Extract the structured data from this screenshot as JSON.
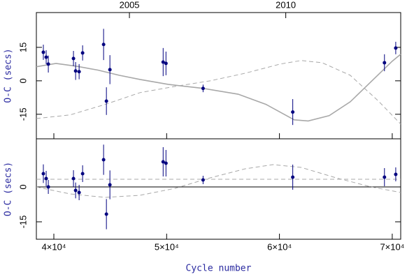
{
  "chart_data": [
    {
      "type": "scatter",
      "ylabel": "O-C (secs)",
      "xlim": [
        38450,
        70750
      ],
      "ylim": [
        -26,
        30.6
      ],
      "yticks": [
        -15,
        0,
        15
      ],
      "x2ticks": [
        {
          "value": 46700,
          "label": "2005"
        },
        {
          "value": 60560,
          "label": "2010"
        }
      ],
      "xticks": [
        40000,
        50000,
        60000,
        70000
      ],
      "points": {
        "color": "#00007f",
        "x": [
          39070,
          39320,
          39510,
          41740,
          41930,
          42240,
          42550,
          44410,
          44660,
          44970,
          49690,
          49940,
          53230,
          61180,
          69310,
          70310
        ],
        "values": [
          12.8,
          10.6,
          7.5,
          10,
          4.4,
          4.1,
          12.5,
          16.3,
          -9.1,
          5,
          8.4,
          7.8,
          -3.4,
          -14,
          8.1,
          14.7
        ],
        "errors": [
          3.4,
          3.1,
          3.8,
          3.4,
          4,
          3.4,
          3.4,
          7,
          6.2,
          6.5,
          6.3,
          5.3,
          1.7,
          5.8,
          3.8,
          2.8
        ]
      },
      "curves": [
        {
          "color": "#a8a8a8",
          "dash": false,
          "x": [
            38450,
            40190,
            42050,
            43910,
            45780,
            47640,
            50130,
            53230,
            56340,
            58820,
            61310,
            62550,
            64410,
            66280,
            68140,
            70000,
            70750
          ],
          "values": [
            6.3,
            7.8,
            6.5,
            4.8,
            2.5,
            0.6,
            -1.6,
            -3.4,
            -6,
            -10.6,
            -17.5,
            -18,
            -15.6,
            -9.4,
            -0.3,
            8.8,
            11.9
          ]
        },
        {
          "color": "#a8a8a8",
          "dash": true,
          "x": [
            38450,
            41430,
            44540,
            47640,
            50750,
            53860,
            56960,
            60060,
            61920,
            63790,
            66270,
            68760,
            70750
          ],
          "values": [
            -16.9,
            -15.3,
            -10.6,
            -5.3,
            -2.5,
            0,
            3.4,
            7.5,
            9.1,
            8.1,
            2.5,
            -9,
            -19.4
          ]
        }
      ]
    },
    {
      "type": "scatter",
      "ylabel": "O-C (secs)",
      "xlabel": "Cycle number",
      "zero_line": true,
      "xlim": [
        38450,
        70750
      ],
      "ylim": [
        -22.5,
        20.7
      ],
      "yticks": [
        -15,
        0
      ],
      "xticks": [
        {
          "value": 40000,
          "label": "4×10⁴"
        },
        {
          "value": 50000,
          "label": "5×10⁴"
        },
        {
          "value": 60000,
          "label": "6×10⁴"
        },
        {
          "value": 70000,
          "label": "7×10⁴"
        }
      ],
      "points": {
        "color": "#00007f",
        "x": [
          39070,
          39320,
          39510,
          41740,
          41930,
          42240,
          42550,
          44410,
          44660,
          44970,
          49690,
          49940,
          53230,
          61180,
          69310,
          70310
        ],
        "values": [
          5.7,
          3.6,
          0,
          3.6,
          -1.5,
          -2.4,
          5.7,
          11.7,
          -11.7,
          0.9,
          10.8,
          10.2,
          3,
          4.2,
          4.2,
          5.4
        ],
        "errors": [
          4,
          3.3,
          3,
          3.6,
          3.4,
          3.3,
          3.6,
          6.5,
          6.5,
          6.2,
          6.3,
          5.7,
          1.8,
          5.4,
          3.9,
          3
        ]
      },
      "curves": [
        {
          "color": "#a8a8a8",
          "dash": true,
          "x": [
            38450,
            70750
          ],
          "values": [
            3.3,
            3.3
          ]
        },
        {
          "color": "#a8a8a8",
          "dash": true,
          "x": [
            38450,
            41430,
            44540,
            47640,
            50750,
            53860,
            56960,
            59440,
            61920,
            65030,
            68140,
            70750
          ],
          "values": [
            0,
            -3,
            -4.5,
            -3.6,
            -0.6,
            3.9,
            7.8,
            9.6,
            8.4,
            3.9,
            0,
            -2.4
          ]
        }
      ]
    }
  ]
}
